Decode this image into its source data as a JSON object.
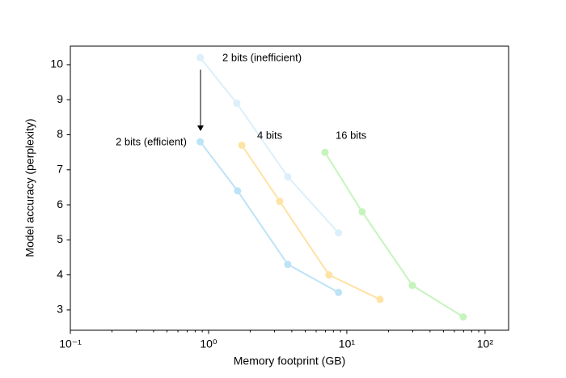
{
  "chart_data": {
    "type": "line",
    "x_label": "Memory footprint (GB)",
    "y_label": "Model accuracy (perplexity)",
    "log_x": true,
    "xlim": [
      0.1,
      148
    ],
    "ylim": [
      2.42,
      10.53
    ],
    "xticks": [
      {
        "value": 0.1,
        "label": "10⁻¹"
      },
      {
        "value": 1,
        "label": "10⁰"
      },
      {
        "value": 10,
        "label": "10¹"
      },
      {
        "value": 100,
        "label": "10²"
      }
    ],
    "yticks": [
      3,
      4,
      5,
      6,
      7,
      8,
      9,
      10
    ],
    "series": [
      {
        "name": "2 bits (inefficient)",
        "color": "#dceffa",
        "x": [
          0.87,
          1.6,
          3.74,
          8.7
        ],
        "values": [
          10.2,
          8.9,
          6.8,
          5.2
        ]
      },
      {
        "name": "2 bits (efficient)",
        "color": "#bde3f7",
        "x": [
          0.87,
          1.62,
          3.74,
          8.7
        ],
        "values": [
          7.8,
          6.4,
          4.3,
          3.5
        ]
      },
      {
        "name": "4 bits",
        "color": "#fde3a6",
        "x": [
          1.74,
          3.27,
          7.43,
          17.4
        ],
        "values": [
          7.7,
          6.1,
          4.0,
          3.3
        ]
      },
      {
        "name": "16 bits",
        "color": "#c6f4bd",
        "x": [
          6.95,
          12.9,
          29.8,
          69.5
        ],
        "values": [
          7.5,
          5.8,
          3.7,
          2.8
        ]
      }
    ]
  }
}
